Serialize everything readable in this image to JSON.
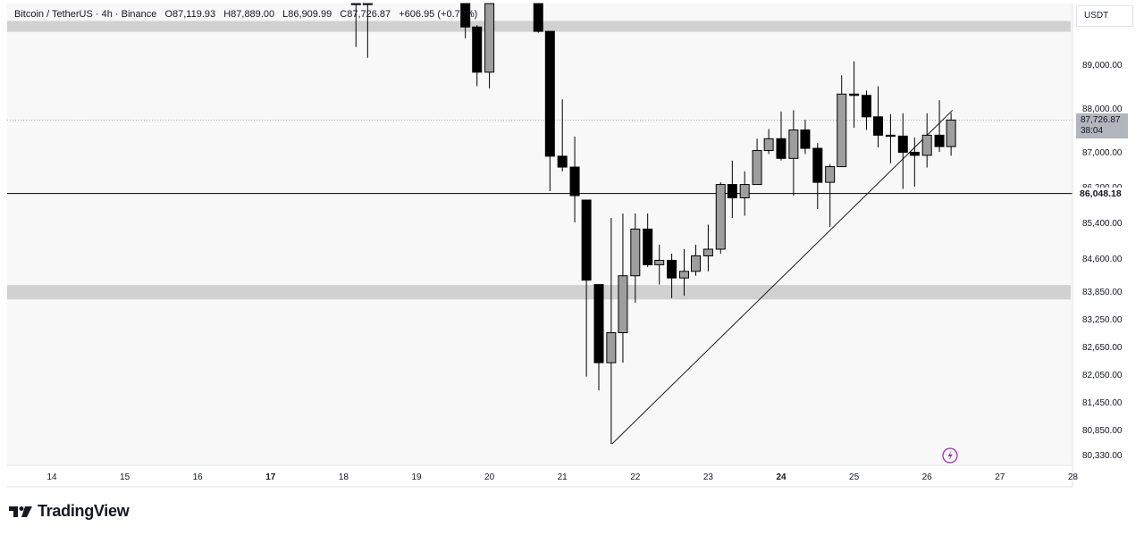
{
  "header": {
    "symbol": "Bitcoin / TetherUS · 4h · Binance",
    "open": "O87,119.93",
    "high": "H87,889.00",
    "low": "L86,909.99",
    "close": "C87,726.87",
    "change": "+606.95 (+0.70%)"
  },
  "currency": "USDT",
  "price_tag": {
    "price": "87,726.87",
    "countdown": "38:04"
  },
  "last_tag": "86,048.18",
  "brand": "TradingView",
  "colors": {
    "up": "#9e9e9e",
    "down": "#000000",
    "zone": "#d1d1d1",
    "background": "#f8f8f8"
  },
  "chart_data": {
    "type": "candlestick",
    "title": "Bitcoin / TetherUS · 4h · Binance",
    "y_unit": "USDT",
    "ylim": [
      80200,
      90400
    ],
    "xlim": [
      13.5,
      28
    ],
    "y_ticks": [
      "89,000.00",
      "88,000.00",
      "87,000.00",
      "86,200.00",
      "85,400.00",
      "84,600.00",
      "83,850.00",
      "83,250.00",
      "82,650.00",
      "82,050.00",
      "81,450.00",
      "80,850.00",
      "80,330.00"
    ],
    "y_tick_values": [
      89000,
      88000,
      87000,
      86200,
      85400,
      84600,
      83850,
      83250,
      82650,
      82050,
      81450,
      80850,
      80330
    ],
    "x_ticks": [
      "14",
      "15",
      "16",
      "17",
      "18",
      "19",
      "20",
      "21",
      "22",
      "23",
      "24",
      "25",
      "26",
      "27",
      "28"
    ],
    "bold_x_ticks": [
      "17",
      "24"
    ],
    "grid": false,
    "zones": [
      {
        "low": 89750,
        "high": 90000
      },
      {
        "low": 83670,
        "high": 83990
      }
    ],
    "horizontal_line": 86048.18,
    "trendline": [
      {
        "x": 21.68,
        "y": 80550
      },
      {
        "x": 26.35,
        "y": 87950
      }
    ],
    "candles": [
      {
        "x": 18.17,
        "o": 90400,
        "h": 90400,
        "l": 89400,
        "c": 90400
      },
      {
        "x": 18.33,
        "o": 90400,
        "h": 90400,
        "l": 89150,
        "c": 90400
      },
      {
        "x": 19.67,
        "o": 90400,
        "h": 90400,
        "l": 89600,
        "c": 89860
      },
      {
        "x": 19.83,
        "o": 89860,
        "h": 89900,
        "l": 88500,
        "c": 88820
      },
      {
        "x": 20.0,
        "o": 88820,
        "h": 90400,
        "l": 88450,
        "c": 90400
      },
      {
        "x": 20.67,
        "o": 90400,
        "h": 90400,
        "l": 89730,
        "c": 89760
      },
      {
        "x": 20.83,
        "o": 89760,
        "h": 89760,
        "l": 86100,
        "c": 86900
      },
      {
        "x": 21.0,
        "o": 86900,
        "h": 88200,
        "l": 86550,
        "c": 86650
      },
      {
        "x": 21.17,
        "o": 86650,
        "h": 87350,
        "l": 85400,
        "c": 86000
      },
      {
        "x": 21.33,
        "o": 85900,
        "h": 85900,
        "l": 82000,
        "c": 84100
      },
      {
        "x": 21.5,
        "o": 84000,
        "h": 84000,
        "l": 81700,
        "c": 82300
      },
      {
        "x": 21.67,
        "o": 82300,
        "h": 85500,
        "l": 80550,
        "c": 82950
      },
      {
        "x": 21.83,
        "o": 82950,
        "h": 85600,
        "l": 82300,
        "c": 84200
      },
      {
        "x": 22.0,
        "o": 84200,
        "h": 85600,
        "l": 83600,
        "c": 85250
      },
      {
        "x": 22.17,
        "o": 85250,
        "h": 85600,
        "l": 84400,
        "c": 84450
      },
      {
        "x": 22.33,
        "o": 84450,
        "h": 84900,
        "l": 84000,
        "c": 84550
      },
      {
        "x": 22.5,
        "o": 84550,
        "h": 84700,
        "l": 83700,
        "c": 84150
      },
      {
        "x": 22.67,
        "o": 84150,
        "h": 84800,
        "l": 83750,
        "c": 84300
      },
      {
        "x": 22.83,
        "o": 84300,
        "h": 84900,
        "l": 84200,
        "c": 84650
      },
      {
        "x": 23.0,
        "o": 84650,
        "h": 85350,
        "l": 84300,
        "c": 84800
      },
      {
        "x": 23.17,
        "o": 84800,
        "h": 86300,
        "l": 84700,
        "c": 86250
      },
      {
        "x": 23.33,
        "o": 86250,
        "h": 86800,
        "l": 85500,
        "c": 85950
      },
      {
        "x": 23.5,
        "o": 85950,
        "h": 86550,
        "l": 85550,
        "c": 86250
      },
      {
        "x": 23.67,
        "o": 86250,
        "h": 87300,
        "l": 86250,
        "c": 87030
      },
      {
        "x": 23.83,
        "o": 87030,
        "h": 87520,
        "l": 86950,
        "c": 87300
      },
      {
        "x": 24.0,
        "o": 87300,
        "h": 87920,
        "l": 86800,
        "c": 86850
      },
      {
        "x": 24.17,
        "o": 86850,
        "h": 87950,
        "l": 86000,
        "c": 87500
      },
      {
        "x": 24.33,
        "o": 87500,
        "h": 87730,
        "l": 86950,
        "c": 87080
      },
      {
        "x": 24.5,
        "o": 87080,
        "h": 87200,
        "l": 85700,
        "c": 86300
      },
      {
        "x": 24.67,
        "o": 86300,
        "h": 86720,
        "l": 85300,
        "c": 86660
      },
      {
        "x": 24.83,
        "o": 86660,
        "h": 88750,
        "l": 86660,
        "c": 88320
      },
      {
        "x": 25.0,
        "o": 88320,
        "h": 89070,
        "l": 87550,
        "c": 88290
      },
      {
        "x": 25.17,
        "o": 88290,
        "h": 88400,
        "l": 87500,
        "c": 87800
      },
      {
        "x": 25.33,
        "o": 87800,
        "h": 88500,
        "l": 87100,
        "c": 87380
      },
      {
        "x": 25.5,
        "o": 87380,
        "h": 87860,
        "l": 86740,
        "c": 87360
      },
      {
        "x": 25.67,
        "o": 87360,
        "h": 87880,
        "l": 86150,
        "c": 86990
      },
      {
        "x": 25.83,
        "o": 86990,
        "h": 87330,
        "l": 86200,
        "c": 86920
      },
      {
        "x": 26.0,
        "o": 86920,
        "h": 87880,
        "l": 86640,
        "c": 87380
      },
      {
        "x": 26.17,
        "o": 87380,
        "h": 88180,
        "l": 87000,
        "c": 87120
      },
      {
        "x": 26.33,
        "o": 87120,
        "h": 87889,
        "l": 86910,
        "c": 87727
      }
    ]
  }
}
